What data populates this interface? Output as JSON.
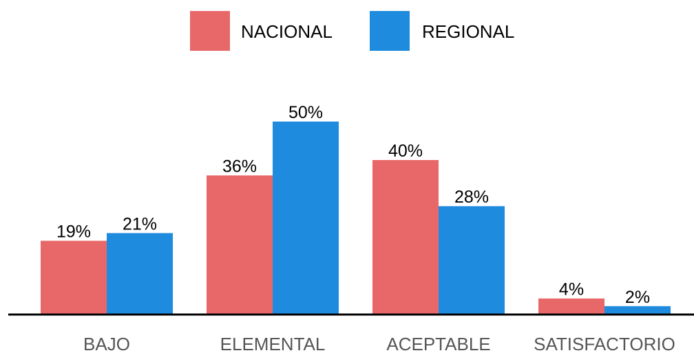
{
  "chart_data": {
    "type": "bar",
    "categories": [
      "BAJO",
      "ELEMENTAL",
      "ACEPTABLE",
      "SATISFACTORIO"
    ],
    "series": [
      {
        "name": "NACIONAL",
        "values": [
          19,
          36,
          40,
          4
        ],
        "labels": [
          "19%",
          "36%",
          "40%",
          "4%"
        ],
        "color": "#E8686A"
      },
      {
        "name": "REGIONAL",
        "values": [
          21,
          50,
          28,
          2
        ],
        "labels": [
          "21%",
          "50%",
          "28%",
          "2%"
        ],
        "color": "#1F8BDF"
      }
    ],
    "ylim": [
      0,
      55
    ],
    "grid": false,
    "legend_position": "top-center",
    "axis_color": "#000000",
    "label_color": "#000000",
    "category_label_color": "#555555"
  }
}
